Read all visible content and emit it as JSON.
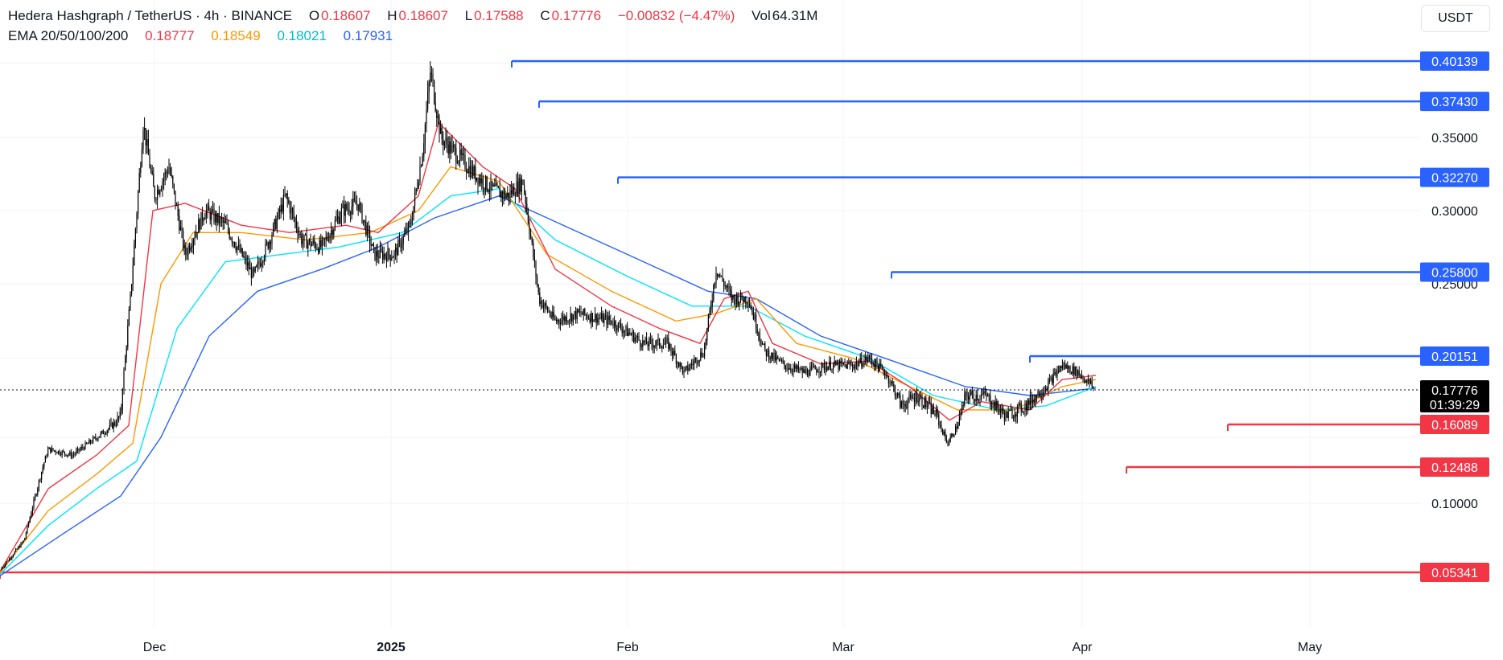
{
  "header": {
    "symbol": "Hedera Hashgraph / TetherUS · 4h · BINANCE",
    "open_label": "O",
    "open": "0.18607",
    "high_label": "H",
    "high": "0.18607",
    "low_label": "L",
    "low": "0.17588",
    "close_label": "C",
    "close": "0.17776",
    "change": "−0.00832 (−4.47%)",
    "vol_label": "Vol",
    "vol": "64.31M",
    "ema_label": "EMA 20/50/100/200",
    "ema20": "0.18777",
    "ema50": "0.18549",
    "ema100": "0.18021",
    "ema200": "0.17931"
  },
  "currency": "USDT",
  "colors": {
    "ema20": "#f23645",
    "ema50": "#ff9800",
    "ema100": "#00e5ff",
    "ema200": "#2962ff",
    "resistance": "#2962ff",
    "support": "#f23645",
    "candle": "#000000"
  },
  "chart_data": {
    "type": "candlestick",
    "x_ticks": [
      "Dec",
      "2025",
      "Feb",
      "Mar",
      "Apr",
      "May"
    ],
    "y_ticks": [
      "0.35000",
      "0.30000",
      "0.25000",
      "0.10000"
    ],
    "ylim": [
      0.03,
      0.425
    ],
    "last_price": "0.17776",
    "countdown": "01:39:29",
    "resistance_levels": [
      {
        "value": 0.40139,
        "label": "0.40139"
      },
      {
        "value": 0.3743,
        "label": "0.37430"
      },
      {
        "value": 0.3227,
        "label": "0.32270"
      },
      {
        "value": 0.258,
        "label": "0.25800"
      },
      {
        "value": 0.20151,
        "label": "0.20151"
      }
    ],
    "support_levels": [
      {
        "value": 0.16089,
        "label": "0.16089"
      },
      {
        "value": 0.12488,
        "label": "0.12488"
      },
      {
        "value": 0.05341,
        "label": "0.05341"
      }
    ],
    "price_path": [
      [
        0,
        0.055
      ],
      [
        30,
        0.075
      ],
      [
        60,
        0.14
      ],
      [
        90,
        0.135
      ],
      [
        120,
        0.15
      ],
      [
        150,
        0.165
      ],
      [
        162,
        0.24
      ],
      [
        178,
        0.36
      ],
      [
        192,
        0.31
      ],
      [
        210,
        0.33
      ],
      [
        230,
        0.27
      ],
      [
        255,
        0.3
      ],
      [
        280,
        0.29
      ],
      [
        300,
        0.27
      ],
      [
        315,
        0.255
      ],
      [
        335,
        0.28
      ],
      [
        355,
        0.31
      ],
      [
        375,
        0.28
      ],
      [
        400,
        0.275
      ],
      [
        425,
        0.3
      ],
      [
        445,
        0.305
      ],
      [
        465,
        0.27
      ],
      [
        490,
        0.27
      ],
      [
        510,
        0.29
      ],
      [
        525,
        0.34
      ],
      [
        535,
        0.395
      ],
      [
        548,
        0.35
      ],
      [
        565,
        0.34
      ],
      [
        590,
        0.325
      ],
      [
        610,
        0.315
      ],
      [
        630,
        0.31
      ],
      [
        650,
        0.32
      ],
      [
        670,
        0.24
      ],
      [
        690,
        0.225
      ],
      [
        720,
        0.23
      ],
      [
        760,
        0.225
      ],
      [
        800,
        0.21
      ],
      [
        830,
        0.21
      ],
      [
        850,
        0.19
      ],
      [
        875,
        0.205
      ],
      [
        890,
        0.26
      ],
      [
        910,
        0.24
      ],
      [
        930,
        0.24
      ],
      [
        950,
        0.205
      ],
      [
        975,
        0.195
      ],
      [
        1000,
        0.19
      ],
      [
        1030,
        0.195
      ],
      [
        1060,
        0.195
      ],
      [
        1080,
        0.2
      ],
      [
        1100,
        0.19
      ],
      [
        1120,
        0.17
      ],
      [
        1140,
        0.175
      ],
      [
        1165,
        0.165
      ],
      [
        1178,
        0.145
      ],
      [
        1190,
        0.16
      ],
      [
        1200,
        0.175
      ],
      [
        1225,
        0.175
      ],
      [
        1250,
        0.165
      ],
      [
        1275,
        0.17
      ],
      [
        1300,
        0.18
      ],
      [
        1320,
        0.195
      ],
      [
        1340,
        0.19
      ],
      [
        1362,
        0.178
      ]
    ],
    "ema_paths": {
      "ema20": [
        [
          0,
          0.054
        ],
        [
          60,
          0.11
        ],
        [
          120,
          0.135
        ],
        [
          160,
          0.16
        ],
        [
          190,
          0.3
        ],
        [
          230,
          0.305
        ],
        [
          300,
          0.29
        ],
        [
          360,
          0.285
        ],
        [
          430,
          0.29
        ],
        [
          470,
          0.285
        ],
        [
          520,
          0.31
        ],
        [
          545,
          0.36
        ],
        [
          600,
          0.33
        ],
        [
          640,
          0.315
        ],
        [
          690,
          0.26
        ],
        [
          760,
          0.235
        ],
        [
          820,
          0.22
        ],
        [
          870,
          0.21
        ],
        [
          900,
          0.24
        ],
        [
          930,
          0.245
        ],
        [
          960,
          0.21
        ],
        [
          1020,
          0.196
        ],
        [
          1080,
          0.198
        ],
        [
          1130,
          0.18
        ],
        [
          1180,
          0.163
        ],
        [
          1220,
          0.172
        ],
        [
          1280,
          0.168
        ],
        [
          1320,
          0.185
        ],
        [
          1362,
          0.188
        ]
      ],
      "ema50": [
        [
          0,
          0.053
        ],
        [
          60,
          0.095
        ],
        [
          120,
          0.12
        ],
        [
          165,
          0.145
        ],
        [
          200,
          0.25
        ],
        [
          240,
          0.285
        ],
        [
          300,
          0.285
        ],
        [
          380,
          0.28
        ],
        [
          460,
          0.285
        ],
        [
          520,
          0.3
        ],
        [
          560,
          0.33
        ],
        [
          620,
          0.32
        ],
        [
          680,
          0.27
        ],
        [
          760,
          0.245
        ],
        [
          840,
          0.225
        ],
        [
          890,
          0.23
        ],
        [
          940,
          0.24
        ],
        [
          990,
          0.21
        ],
        [
          1060,
          0.2
        ],
        [
          1120,
          0.183
        ],
        [
          1190,
          0.168
        ],
        [
          1260,
          0.168
        ],
        [
          1320,
          0.18
        ],
        [
          1362,
          0.185
        ]
      ],
      "ema100": [
        [
          0,
          0.052
        ],
        [
          60,
          0.085
        ],
        [
          120,
          0.11
        ],
        [
          170,
          0.13
        ],
        [
          220,
          0.22
        ],
        [
          280,
          0.265
        ],
        [
          350,
          0.27
        ],
        [
          420,
          0.275
        ],
        [
          500,
          0.285
        ],
        [
          560,
          0.31
        ],
        [
          620,
          0.315
        ],
        [
          690,
          0.28
        ],
        [
          780,
          0.255
        ],
        [
          860,
          0.235
        ],
        [
          930,
          0.235
        ],
        [
          1000,
          0.215
        ],
        [
          1080,
          0.2
        ],
        [
          1160,
          0.175
        ],
        [
          1240,
          0.168
        ],
        [
          1300,
          0.17
        ],
        [
          1362,
          0.18
        ]
      ],
      "ema200": [
        [
          0,
          0.051
        ],
        [
          80,
          0.08
        ],
        [
          150,
          0.105
        ],
        [
          200,
          0.15
        ],
        [
          260,
          0.215
        ],
        [
          320,
          0.245
        ],
        [
          400,
          0.26
        ],
        [
          470,
          0.275
        ],
        [
          540,
          0.295
        ],
        [
          620,
          0.31
        ],
        [
          700,
          0.29
        ],
        [
          800,
          0.265
        ],
        [
          880,
          0.245
        ],
        [
          940,
          0.24
        ],
        [
          1020,
          0.215
        ],
        [
          1100,
          0.2
        ],
        [
          1200,
          0.18
        ],
        [
          1280,
          0.175
        ],
        [
          1362,
          0.179
        ]
      ]
    }
  }
}
